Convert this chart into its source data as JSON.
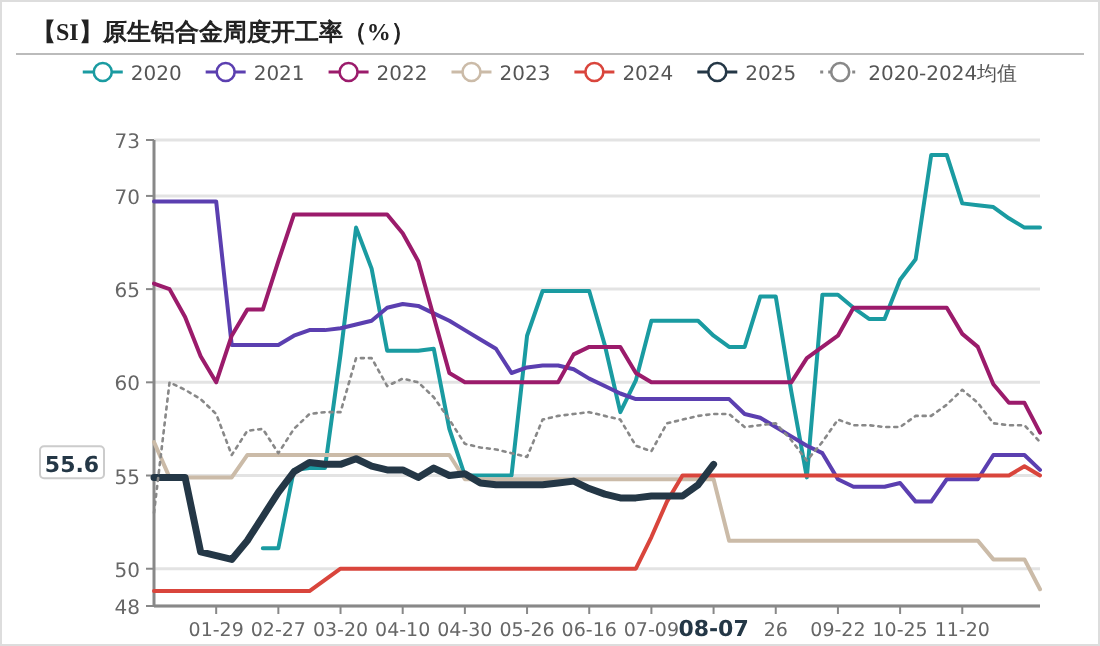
{
  "chart_data": {
    "type": "line",
    "title": "【SI】原生铝合金周度开工率（%）",
    "categories": [
      null,
      null,
      null,
      null,
      "01-29",
      null,
      null,
      null,
      "02-27",
      null,
      null,
      null,
      "03-20",
      null,
      null,
      null,
      "04-10",
      null,
      null,
      null,
      "04-30",
      null,
      null,
      null,
      "05-26",
      null,
      null,
      null,
      "06-16",
      null,
      null,
      null,
      "07-09",
      null,
      null,
      null,
      "08-07",
      null,
      null,
      null,
      "26",
      null,
      null,
      null,
      "09-22",
      null,
      null,
      null,
      "10-25",
      null,
      null,
      null,
      "11-20",
      null,
      null,
      null,
      null,
      null
    ],
    "series": [
      {
        "name": "2020",
        "color": "#1a9ba1",
        "values": [
          null,
          null,
          null,
          null,
          null,
          null,
          null,
          51.1,
          51.1,
          55.3,
          55.4,
          55.4,
          61.5,
          68.3,
          66.1,
          61.7,
          61.7,
          61.7,
          61.8,
          57.5,
          55.0,
          55.0,
          55.0,
          55.0,
          62.5,
          64.9,
          64.9,
          64.9,
          64.9,
          62.0,
          58.4,
          60.1,
          63.3,
          63.3,
          63.3,
          63.3,
          62.5,
          61.9,
          61.9,
          64.6,
          64.6,
          59.5,
          54.9,
          64.7,
          64.7,
          64.0,
          63.4,
          63.4,
          65.5,
          66.6,
          72.2,
          72.2,
          69.6,
          69.5,
          69.4,
          68.8,
          68.3,
          68.3
        ]
      },
      {
        "name": "2021",
        "color": "#5b3fb0",
        "values": [
          69.7,
          69.7,
          69.7,
          69.7,
          69.7,
          62.0,
          62.0,
          62.0,
          62.0,
          62.5,
          62.8,
          62.8,
          62.9,
          63.1,
          63.3,
          64.0,
          64.2,
          64.1,
          63.7,
          63.3,
          62.8,
          62.3,
          61.8,
          60.5,
          60.8,
          60.9,
          60.9,
          60.7,
          60.2,
          59.8,
          59.4,
          59.1,
          59.1,
          59.1,
          59.1,
          59.1,
          59.1,
          59.1,
          58.3,
          58.1,
          57.6,
          57.1,
          56.6,
          56.2,
          54.8,
          54.4,
          54.4,
          54.4,
          54.6,
          53.6,
          53.6,
          54.8,
          54.8,
          54.8,
          56.1,
          56.1,
          56.1,
          55.3
        ]
      },
      {
        "name": "2022",
        "color": "#9b1b6b",
        "values": [
          65.3,
          65.0,
          63.5,
          61.4,
          60.0,
          62.5,
          63.9,
          63.9,
          66.5,
          69.0,
          69.0,
          69.0,
          69.0,
          69.0,
          69.0,
          69.0,
          68.0,
          66.5,
          63.5,
          60.5,
          60.0,
          60.0,
          60.0,
          60.0,
          60.0,
          60.0,
          60.0,
          61.5,
          61.9,
          61.9,
          61.9,
          60.5,
          60.0,
          60.0,
          60.0,
          60.0,
          60.0,
          60.0,
          60.0,
          60.0,
          60.0,
          60.0,
          61.3,
          61.9,
          62.5,
          64.0,
          64.0,
          64.0,
          64.0,
          64.0,
          64.0,
          64.0,
          62.6,
          61.9,
          59.9,
          58.9,
          58.9,
          57.3
        ]
      },
      {
        "name": "2023",
        "color": "#cbbba8",
        "values": [
          56.8,
          54.9,
          54.9,
          54.9,
          54.9,
          54.9,
          56.1,
          56.1,
          56.1,
          56.1,
          56.1,
          56.1,
          56.1,
          56.1,
          56.1,
          56.1,
          56.1,
          56.1,
          56.1,
          56.1,
          54.8,
          54.8,
          54.8,
          54.8,
          54.8,
          54.8,
          54.8,
          54.8,
          54.8,
          54.8,
          54.8,
          54.8,
          54.8,
          54.8,
          54.8,
          54.8,
          54.8,
          51.5,
          51.5,
          51.5,
          51.5,
          51.5,
          51.5,
          51.5,
          51.5,
          51.5,
          51.5,
          51.5,
          51.5,
          51.5,
          51.5,
          51.5,
          51.5,
          51.5,
          50.5,
          50.5,
          50.5,
          48.9
        ]
      },
      {
        "name": "2024",
        "color": "#d9453c",
        "values": [
          48.8,
          48.8,
          48.8,
          48.8,
          48.8,
          48.8,
          48.8,
          48.8,
          48.8,
          48.8,
          48.8,
          49.4,
          50.0,
          50.0,
          50.0,
          50.0,
          50.0,
          50.0,
          50.0,
          50.0,
          50.0,
          50.0,
          50.0,
          50.0,
          50.0,
          50.0,
          50.0,
          50.0,
          50.0,
          50.0,
          50.0,
          50.0,
          51.7,
          53.6,
          55.0,
          55.0,
          55.0,
          55.0,
          55.0,
          55.0,
          55.0,
          55.0,
          55.0,
          55.0,
          55.0,
          55.0,
          55.0,
          55.0,
          55.0,
          55.0,
          55.0,
          55.0,
          55.0,
          55.0,
          55.0,
          55.0,
          55.5,
          55.0
        ]
      },
      {
        "name": "2025",
        "color": "#243746",
        "values": [
          54.9,
          54.9,
          54.9,
          50.9,
          50.7,
          50.5,
          51.5,
          52.8,
          54.1,
          55.2,
          55.7,
          55.6,
          55.6,
          55.9,
          55.5,
          55.3,
          55.3,
          54.9,
          55.4,
          55.0,
          55.1,
          54.6,
          54.5,
          54.5,
          54.5,
          54.5,
          54.6,
          54.7,
          54.3,
          54.0,
          53.8,
          53.8,
          53.9,
          53.9,
          53.9,
          54.5,
          55.6,
          null,
          null,
          null,
          null,
          null,
          null,
          null,
          null,
          null,
          null,
          null,
          null,
          null,
          null,
          null,
          null,
          null,
          null,
          null,
          null,
          null
        ]
      },
      {
        "name": "2020-2024均值",
        "color": "#888888",
        "line_style": "dotted",
        "values": [
          53.0,
          60.0,
          59.6,
          59.1,
          58.3,
          56.1,
          57.4,
          57.5,
          56.2,
          57.5,
          58.3,
          58.4,
          58.4,
          61.3,
          61.3,
          59.8,
          60.2,
          60.0,
          59.2,
          58.0,
          56.7,
          56.5,
          56.4,
          56.2,
          56.0,
          58.0,
          58.2,
          58.3,
          58.4,
          58.2,
          58.0,
          56.6,
          56.3,
          57.8,
          58.0,
          58.2,
          58.3,
          58.3,
          57.6,
          57.7,
          57.8,
          56.9,
          55.8,
          56.8,
          58.0,
          57.7,
          57.7,
          57.6,
          57.6,
          58.2,
          58.2,
          58.8,
          59.6,
          58.9,
          57.8,
          57.7,
          57.7,
          56.8
        ]
      }
    ],
    "ylim": [
      48,
      73
    ],
    "yticks": [
      48,
      50,
      55,
      60,
      65,
      70,
      73
    ],
    "grid": "y",
    "legend": "top",
    "line_style": "solid",
    "annotations": [
      "55.6"
    ]
  }
}
